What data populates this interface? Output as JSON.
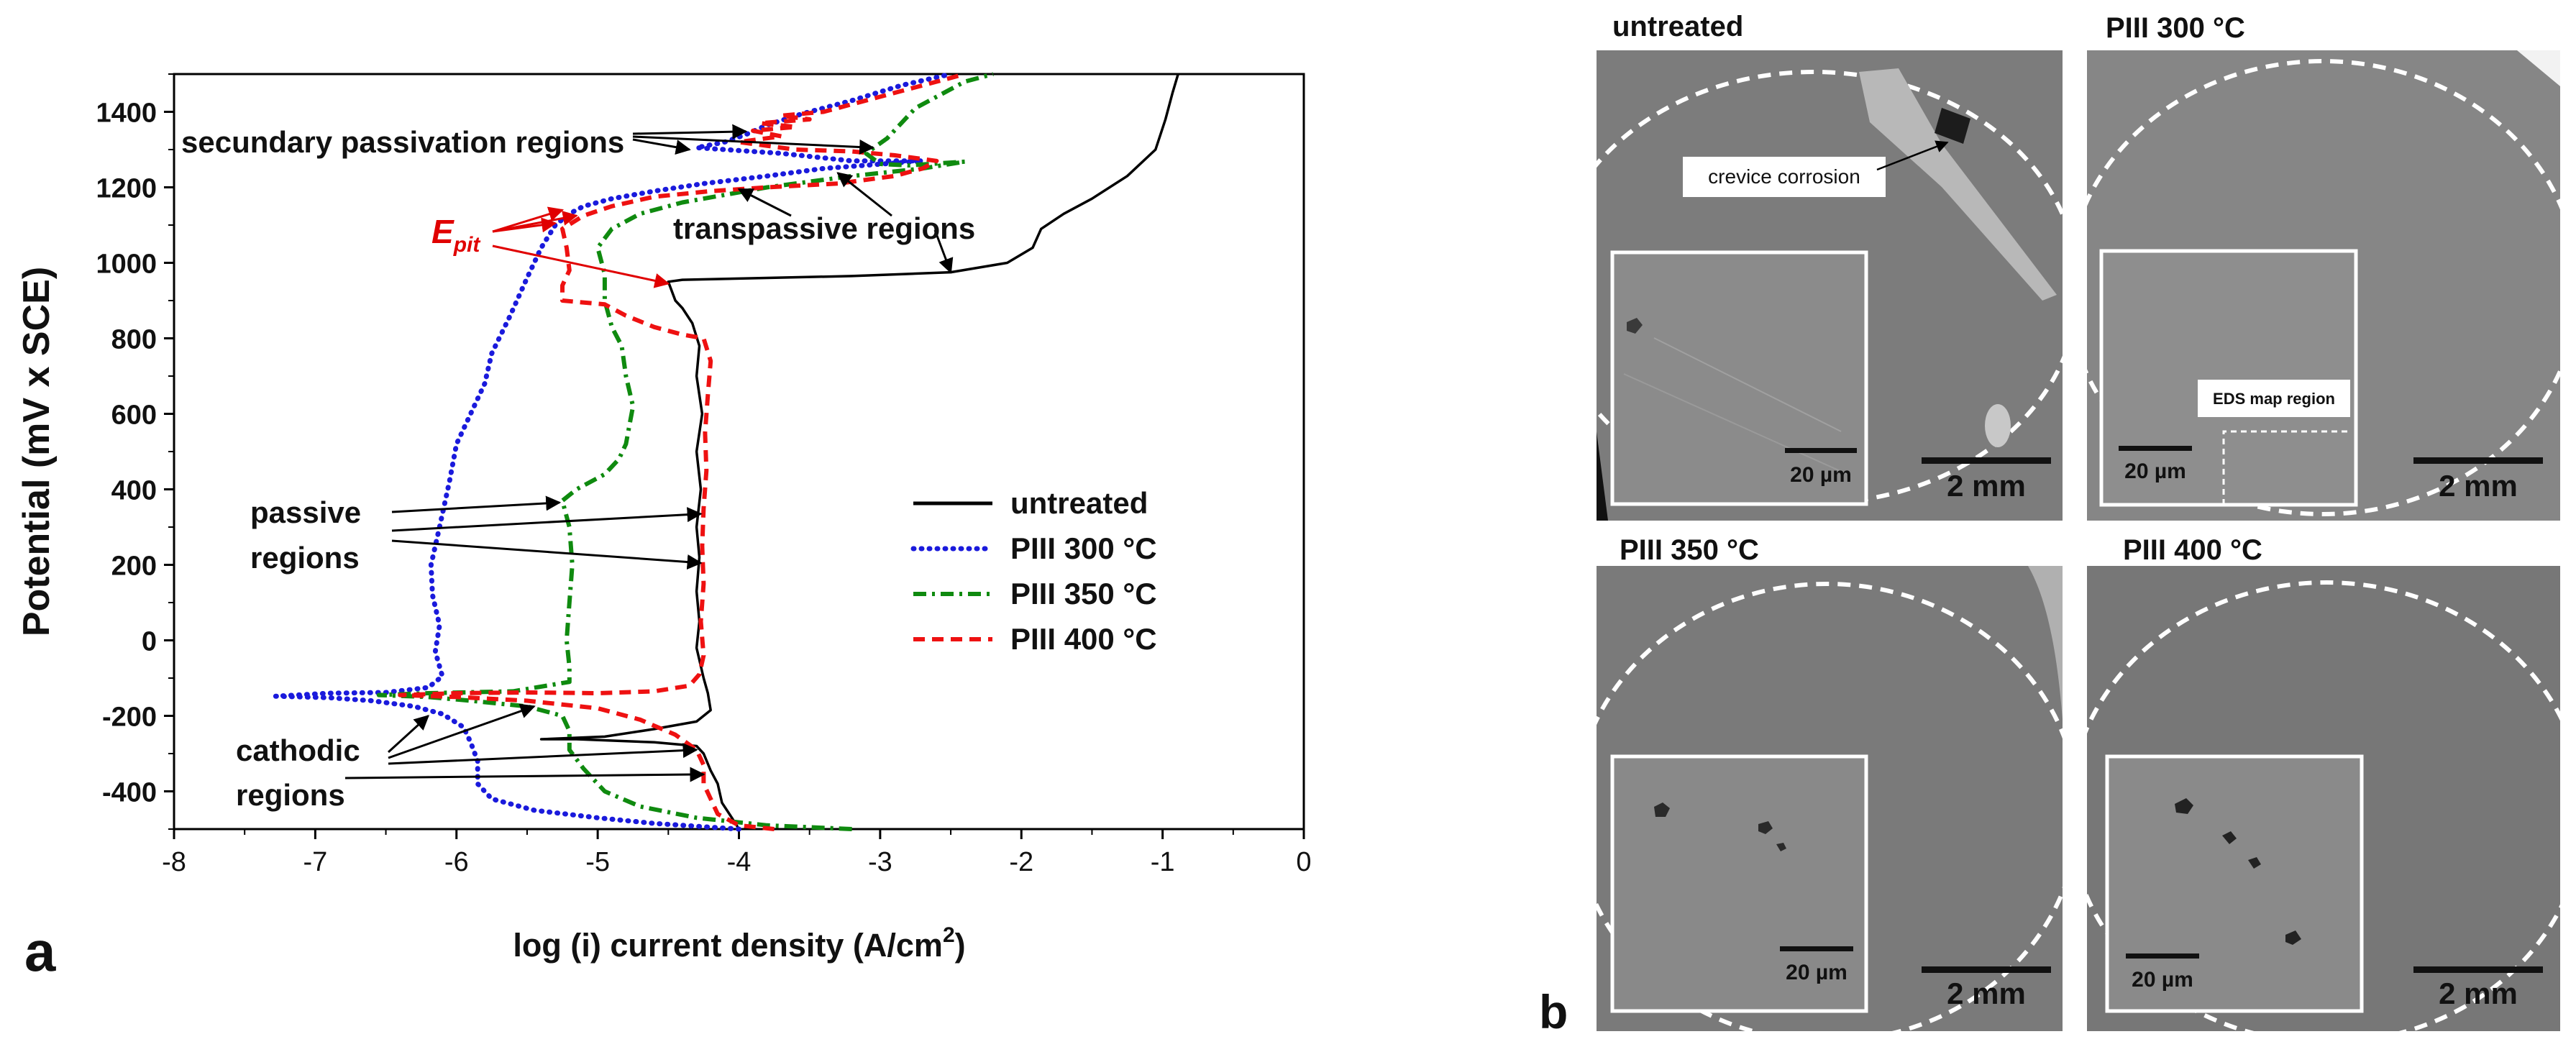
{
  "panel_letters": {
    "a": "a",
    "b": "b"
  },
  "chart_data": {
    "type": "line",
    "xlabel": "log (i) current   density (A/cm2)",
    "xlabel_main": "log (i) current   density (A/cm",
    "xlabel_sup": "2",
    "xlabel_close": ")",
    "ylabel": "Potential (mV x SCE)",
    "xlim": [
      -8,
      0
    ],
    "ylim": [
      -500,
      1500
    ],
    "xticks": [
      -8,
      -7,
      -6,
      -5,
      -4,
      -3,
      -2,
      -1,
      0
    ],
    "yticks": [
      -400,
      -200,
      0,
      200,
      400,
      600,
      800,
      1000,
      1200,
      1400
    ],
    "legend_position": "right-center",
    "series": [
      {
        "name": "untreated",
        "color": "#000000",
        "dash": "solid",
        "points": [
          [
            -4.0,
            -500
          ],
          [
            -4.05,
            -470
          ],
          [
            -4.12,
            -430
          ],
          [
            -4.15,
            -380
          ],
          [
            -4.2,
            -345
          ],
          [
            -4.25,
            -300
          ],
          [
            -4.3,
            -280
          ],
          [
            -4.6,
            -270
          ],
          [
            -5.15,
            -262
          ],
          [
            -5.4,
            -262
          ],
          [
            -4.95,
            -255
          ],
          [
            -4.6,
            -235
          ],
          [
            -4.3,
            -215
          ],
          [
            -4.2,
            -185
          ],
          [
            -4.22,
            -140
          ],
          [
            -4.25,
            -100
          ],
          [
            -4.3,
            -20
          ],
          [
            -4.28,
            50
          ],
          [
            -4.3,
            130
          ],
          [
            -4.28,
            220
          ],
          [
            -4.3,
            300
          ],
          [
            -4.27,
            400
          ],
          [
            -4.3,
            500
          ],
          [
            -4.26,
            600
          ],
          [
            -4.3,
            700
          ],
          [
            -4.28,
            780
          ],
          [
            -4.33,
            840
          ],
          [
            -4.4,
            880
          ],
          [
            -4.45,
            900
          ],
          [
            -4.48,
            930
          ],
          [
            -4.5,
            950
          ],
          [
            -4.4,
            955
          ],
          [
            -3.8,
            960
          ],
          [
            -3.2,
            965
          ],
          [
            -2.5,
            975
          ],
          [
            -2.1,
            1000
          ],
          [
            -1.92,
            1040
          ],
          [
            -1.86,
            1090
          ],
          [
            -1.7,
            1130
          ],
          [
            -1.5,
            1170
          ],
          [
            -1.25,
            1230
          ],
          [
            -1.05,
            1300
          ],
          [
            -0.98,
            1380
          ],
          [
            -0.93,
            1450
          ],
          [
            -0.89,
            1500
          ]
        ]
      },
      {
        "name": "PIII 300 °C",
        "color": "#1a1adc",
        "dash": "dot",
        "points": [
          [
            -4.0,
            -500
          ],
          [
            -4.6,
            -485
          ],
          [
            -5.0,
            -470
          ],
          [
            -5.45,
            -450
          ],
          [
            -5.75,
            -420
          ],
          [
            -5.85,
            -380
          ],
          [
            -5.85,
            -320
          ],
          [
            -5.9,
            -270
          ],
          [
            -5.95,
            -230
          ],
          [
            -6.1,
            -195
          ],
          [
            -6.3,
            -175
          ],
          [
            -6.6,
            -160
          ],
          [
            -6.9,
            -152
          ],
          [
            -7.28,
            -148
          ],
          [
            -6.9,
            -140
          ],
          [
            -6.5,
            -138
          ],
          [
            -6.2,
            -125
          ],
          [
            -6.1,
            -95
          ],
          [
            -6.15,
            -30
          ],
          [
            -6.12,
            40
          ],
          [
            -6.17,
            120
          ],
          [
            -6.18,
            200
          ],
          [
            -6.12,
            300
          ],
          [
            -6.05,
            420
          ],
          [
            -6.0,
            520
          ],
          [
            -5.9,
            600
          ],
          [
            -5.8,
            680
          ],
          [
            -5.75,
            760
          ],
          [
            -5.62,
            860
          ],
          [
            -5.5,
            960
          ],
          [
            -5.4,
            1040
          ],
          [
            -5.3,
            1100
          ],
          [
            -5.2,
            1130
          ],
          [
            -5.1,
            1150
          ],
          [
            -4.9,
            1170
          ],
          [
            -4.6,
            1190
          ],
          [
            -4.25,
            1210
          ],
          [
            -3.8,
            1230
          ],
          [
            -3.4,
            1250
          ],
          [
            -2.7,
            1270
          ],
          [
            -3.2,
            1270
          ],
          [
            -3.7,
            1290
          ],
          [
            -4.1,
            1300
          ],
          [
            -4.3,
            1305
          ],
          [
            -4.1,
            1320
          ],
          [
            -3.95,
            1340
          ],
          [
            -3.8,
            1365
          ],
          [
            -3.55,
            1395
          ],
          [
            -3.2,
            1430
          ],
          [
            -2.85,
            1470
          ],
          [
            -2.5,
            1500
          ]
        ]
      },
      {
        "name": "PIII 350 °C",
        "color": "#0f8a0f",
        "dash": "dashdot",
        "points": [
          [
            -3.2,
            -500
          ],
          [
            -3.8,
            -490
          ],
          [
            -4.3,
            -470
          ],
          [
            -4.7,
            -440
          ],
          [
            -4.95,
            -400
          ],
          [
            -5.1,
            -340
          ],
          [
            -5.2,
            -290
          ],
          [
            -5.2,
            -240
          ],
          [
            -5.25,
            -200
          ],
          [
            -5.5,
            -175
          ],
          [
            -5.9,
            -160
          ],
          [
            -6.2,
            -150
          ],
          [
            -6.55,
            -145
          ],
          [
            -6.2,
            -140
          ],
          [
            -5.6,
            -135
          ],
          [
            -5.2,
            -110
          ],
          [
            -5.2,
            -70
          ],
          [
            -5.22,
            0
          ],
          [
            -5.2,
            100
          ],
          [
            -5.18,
            200
          ],
          [
            -5.2,
            300
          ],
          [
            -5.25,
            370
          ],
          [
            -5.15,
            400
          ],
          [
            -4.95,
            440
          ],
          [
            -4.85,
            480
          ],
          [
            -4.8,
            520
          ],
          [
            -4.78,
            560
          ],
          [
            -4.75,
            620
          ],
          [
            -4.8,
            700
          ],
          [
            -4.83,
            780
          ],
          [
            -4.9,
            830
          ],
          [
            -4.95,
            900
          ],
          [
            -4.95,
            970
          ],
          [
            -5.0,
            1040
          ],
          [
            -4.9,
            1090
          ],
          [
            -4.7,
            1130
          ],
          [
            -4.4,
            1160
          ],
          [
            -3.8,
            1200
          ],
          [
            -3.2,
            1230
          ],
          [
            -2.7,
            1250
          ],
          [
            -2.4,
            1268
          ],
          [
            -2.8,
            1258
          ],
          [
            -3.0,
            1262
          ],
          [
            -3.1,
            1290
          ],
          [
            -2.95,
            1330
          ],
          [
            -2.85,
            1370
          ],
          [
            -2.75,
            1410
          ],
          [
            -2.55,
            1450
          ],
          [
            -2.4,
            1480
          ],
          [
            -2.2,
            1500
          ]
        ]
      },
      {
        "name": "PIII 400 °C",
        "color": "#ee1111",
        "dash": "dash",
        "points": [
          [
            -3.75,
            -500
          ],
          [
            -4.0,
            -490
          ],
          [
            -4.15,
            -460
          ],
          [
            -4.2,
            -420
          ],
          [
            -4.25,
            -380
          ],
          [
            -4.25,
            -330
          ],
          [
            -4.3,
            -290
          ],
          [
            -4.45,
            -250
          ],
          [
            -4.7,
            -210
          ],
          [
            -5.0,
            -180
          ],
          [
            -5.5,
            -160
          ],
          [
            -6.0,
            -150
          ],
          [
            -6.4,
            -145
          ],
          [
            -6.0,
            -140
          ],
          [
            -5.5,
            -138
          ],
          [
            -5.0,
            -140
          ],
          [
            -4.6,
            -135
          ],
          [
            -4.35,
            -120
          ],
          [
            -4.28,
            -90
          ],
          [
            -4.25,
            -40
          ],
          [
            -4.27,
            50
          ],
          [
            -4.25,
            150
          ],
          [
            -4.26,
            250
          ],
          [
            -4.25,
            350
          ],
          [
            -4.23,
            450
          ],
          [
            -4.24,
            550
          ],
          [
            -4.22,
            650
          ],
          [
            -4.2,
            740
          ],
          [
            -4.25,
            800
          ],
          [
            -4.4,
            810
          ],
          [
            -4.6,
            830
          ],
          [
            -4.8,
            860
          ],
          [
            -4.95,
            890
          ],
          [
            -5.25,
            900
          ],
          [
            -5.25,
            940
          ],
          [
            -5.2,
            980
          ],
          [
            -5.22,
            1040
          ],
          [
            -5.25,
            1090
          ],
          [
            -5.1,
            1125
          ],
          [
            -4.9,
            1150
          ],
          [
            -4.6,
            1175
          ],
          [
            -4.2,
            1190
          ],
          [
            -3.8,
            1200
          ],
          [
            -3.3,
            1210
          ],
          [
            -2.9,
            1230
          ],
          [
            -2.7,
            1250
          ],
          [
            -2.6,
            1270
          ],
          [
            -2.9,
            1285
          ],
          [
            -3.2,
            1295
          ],
          [
            -3.6,
            1300
          ],
          [
            -3.8,
            1310
          ],
          [
            -4.0,
            1320
          ],
          [
            -3.7,
            1335
          ],
          [
            -3.9,
            1350
          ],
          [
            -3.6,
            1360
          ],
          [
            -3.85,
            1370
          ],
          [
            -3.5,
            1380
          ],
          [
            -3.7,
            1390
          ],
          [
            -3.4,
            1400
          ],
          [
            -3.2,
            1420
          ],
          [
            -3.0,
            1440
          ],
          [
            -2.75,
            1465
          ],
          [
            -2.5,
            1490
          ],
          [
            -2.4,
            1500
          ]
        ]
      }
    ],
    "annotations": {
      "secondary": "secundary passivation regions",
      "transpassive": "transpassive regions",
      "epit": "E",
      "epit_sub": "pit",
      "passive_1": "passive",
      "passive_2": "regions",
      "cathodic_1": "cathodic",
      "cathodic_2": "regions"
    },
    "annotation_targets": {
      "secondary": [
        [
          -3.95,
          1348
        ],
        [
          -4.35,
          1300
        ],
        [
          -3.05,
          1305
        ]
      ],
      "transpassive": [
        [
          -4.0,
          1195
        ],
        [
          -3.3,
          1238
        ],
        [
          -2.5,
          975
        ]
      ],
      "epit": [
        [
          -5.25,
          1140
        ],
        [
          -5.15,
          1125
        ],
        [
          -5.3,
          1105
        ],
        [
          -4.5,
          945
        ]
      ],
      "passive": [
        [
          -5.27,
          365
        ],
        [
          -4.27,
          335
        ],
        [
          -4.27,
          205
        ]
      ],
      "cathodic": [
        [
          -6.2,
          -200
        ],
        [
          -5.45,
          -175
        ],
        [
          -4.3,
          -290
        ],
        [
          -4.25,
          -355
        ]
      ]
    }
  },
  "sem": {
    "tiles": [
      {
        "title": "untreated",
        "crevice_label": "crevice corrosion",
        "scale_big": "2 mm",
        "scale_small": "20 µm",
        "tone": "#7c7c7c"
      },
      {
        "title": "PIII 300 °C",
        "eds_label": "EDS map region",
        "scale_big": "2 mm",
        "scale_small": "20 µm",
        "tone": "#868686"
      },
      {
        "title": "PIII 350 °C",
        "scale_big": "2 mm",
        "scale_small": "20 µm",
        "tone": "#7a7a7a"
      },
      {
        "title": "PIII 400 °C",
        "scale_big": "2 mm",
        "scale_small": "20 µm",
        "tone": "#777777"
      }
    ]
  }
}
